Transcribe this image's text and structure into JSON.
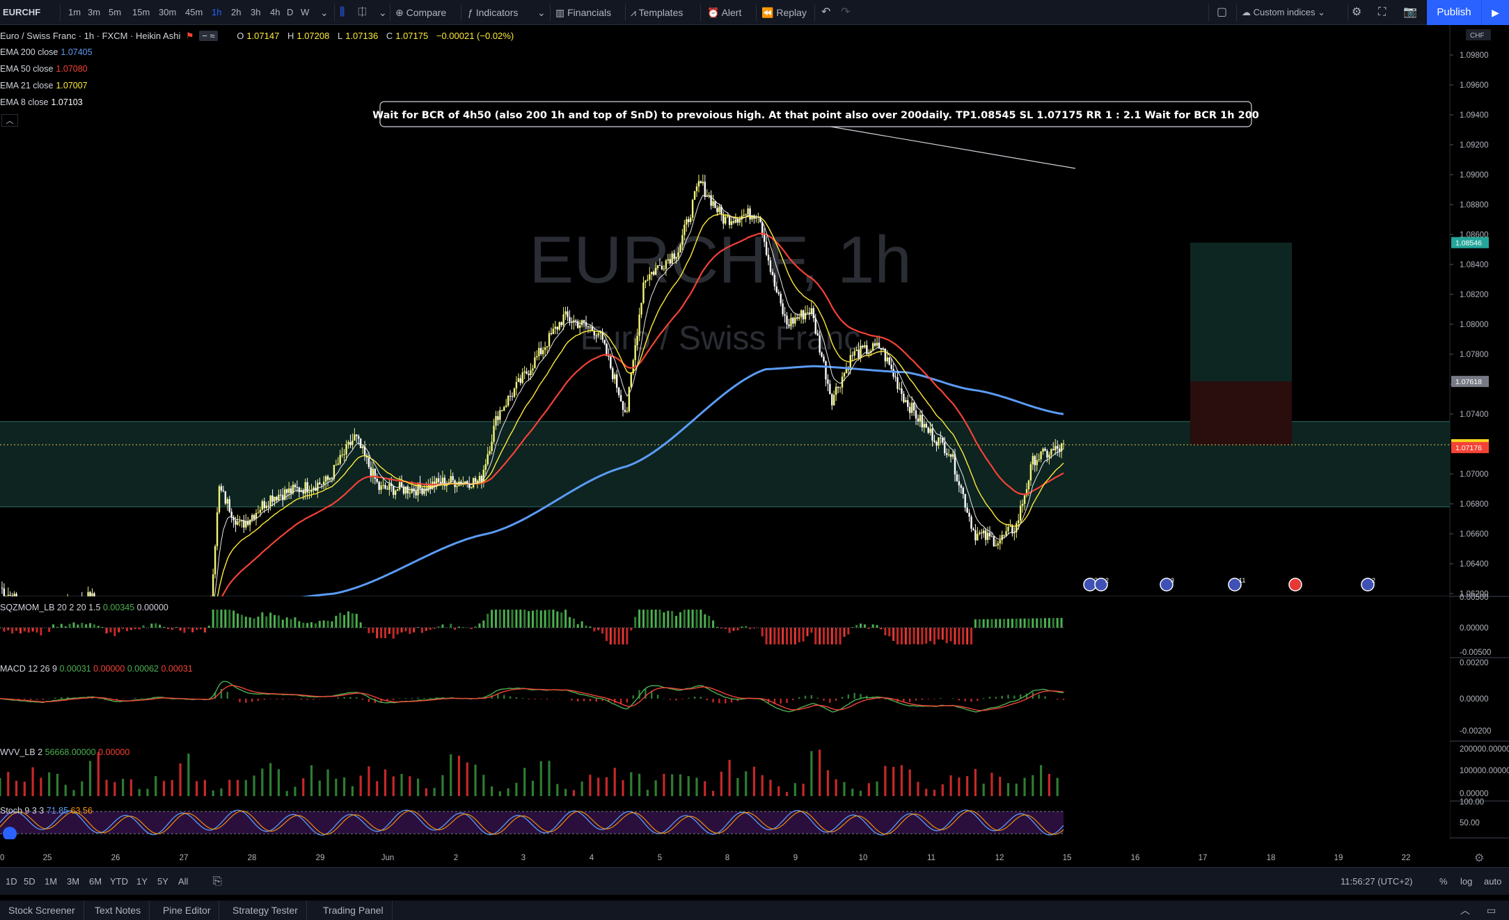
{
  "toolbar": {
    "symbol": "EURCHF",
    "intervals": [
      "1m",
      "3m",
      "5m",
      "15m",
      "30m",
      "45m",
      "1h",
      "2h",
      "3h",
      "4h",
      "D",
      "W"
    ],
    "active_interval": "1h",
    "compare": "Compare",
    "indicators": "Indicators",
    "financials": "Financials",
    "templates": "Templates",
    "alert": "Alert",
    "replay": "Replay",
    "custom_indices": "Custom indices",
    "publish": "Publish"
  },
  "legend": {
    "title": "Euro / Swiss Franc · 1h · FXCM · Heikin Ashi",
    "o_label": "O",
    "o_value": "1.07147",
    "h_label": "H",
    "h_value": "1.07208",
    "l_label": "L",
    "l_value": "1.07136",
    "c_label": "C",
    "c_value": "1.07175",
    "change": "−0.00021 (−0.02%)",
    "ema200_label": "EMA 200 close",
    "ema200_value": "1.07405",
    "ema50_label": "EMA 50 close",
    "ema50_value": "1.07080",
    "ema21_label": "EMA 21 close",
    "ema21_value": "1.07007",
    "ema8_label": "EMA 8 close",
    "ema8_value": "1.07103"
  },
  "watermark": {
    "symbol": "EURCHF, 1h",
    "description": "Euro / Swiss Franc"
  },
  "annotation": "Wait for BCR of 4h50 (also 200 1h and top of SnD) to prevoious high. At that point also over 200daily. TP1.08545 SL 1.07175 RR 1 : 2.1 Wait for BCR 1h 200",
  "price_axis": {
    "currency": "CHF",
    "ticks": [
      "1.09800",
      "1.09600",
      "1.09400",
      "1.09200",
      "1.09000",
      "1.08800",
      "1.08600",
      "1.08400",
      "1.08200",
      "1.08000",
      "1.07800",
      "1.07600",
      "1.07400",
      "1.07200",
      "1.07000",
      "1.06800",
      "1.06600",
      "1.06400",
      "1.06200"
    ],
    "tag_tp": "1.08546",
    "tag_entry": "1.07618",
    "tag_current": "1.07195",
    "tag_ema50": "1.07176"
  },
  "panes": {
    "sqz": {
      "label": "SQZMOM_LB 20 2 20 1.5",
      "v1": "0.00345",
      "v2": "0.00000",
      "ticks": [
        "0.00500",
        "0.00000",
        "-0.00500"
      ]
    },
    "macd": {
      "label": "MACD 12 26 9",
      "v1": "0.00031",
      "v2": "0.00000",
      "v3": "0.00062",
      "v4": "0.00031",
      "ticks": [
        "0.00200",
        "0.00000",
        "-0.00200"
      ]
    },
    "wvv": {
      "label": "WVV_LB 2",
      "v1": "56668.00000",
      "v2": "0.00000",
      "ticks": [
        "200000.00000",
        "100000.00000",
        "0.00000"
      ]
    },
    "stoch": {
      "label": "Stoch 9 3 3",
      "v1": "71.85",
      "v2": "63.56",
      "ticks": [
        "100.00",
        "50.00"
      ]
    }
  },
  "time_axis": [
    "0",
    "25",
    "26",
    "27",
    "28",
    "29",
    "Jun",
    "2",
    "3",
    "4",
    "5",
    "8",
    "9",
    "10",
    "11",
    "12",
    "15",
    "16",
    "17",
    "18",
    "19",
    "22"
  ],
  "range_bar": {
    "ranges": [
      "1D",
      "5D",
      "1M",
      "3M",
      "6M",
      "YTD",
      "1Y",
      "5Y",
      "All"
    ],
    "clock": "11:56:27 (UTC+2)",
    "percent": "%",
    "log": "log",
    "auto": "auto"
  },
  "bottom_tabs": [
    "Stock Screener",
    "Text Notes",
    "Pine Editor",
    "Strategy Tester",
    "Trading Panel"
  ],
  "event_badges": [
    "2",
    "2",
    "3",
    "11",
    "",
    "2"
  ],
  "colors": {
    "bull": "#f5f57a",
    "bear": "#ffffff",
    "ema200": "#5b9cf6",
    "ema50": "#f44336",
    "ema21": "#ffeb3b",
    "ema8": "#ffffff",
    "zone": "#0f2a27",
    "tp_zone": "#0e2621",
    "sl_zone": "#2a0d0d",
    "accent": "#2962ff"
  }
}
